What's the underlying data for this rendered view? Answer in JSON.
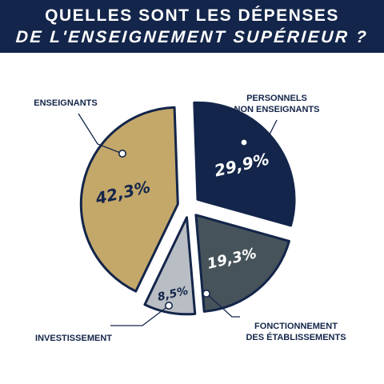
{
  "title_line1": "QUELLES SONT LES DÉPENSES",
  "title_line2": "DE L'ENSEIGNEMENT SUPÉRIEUR ?",
  "chart_data": {
    "type": "pie",
    "title": "QUELLES SONT LES DÉPENSES DE L'ENSEIGNEMENT SUPÉRIEUR ?",
    "slices": [
      {
        "key": "pnens",
        "label_lines": [
          "PERSONNELS",
          "NON ENSEIGNANTS"
        ],
        "value": 29.9,
        "display": "29,9%",
        "color": "#13254a",
        "text_color": "#ffffff"
      },
      {
        "key": "fonct",
        "label_lines": [
          "FONCTIONNEMENT",
          "DES ÉTABLISSEMENTS"
        ],
        "value": 19.3,
        "display": "19,3%",
        "color": "#46535a",
        "text_color": "#ffffff"
      },
      {
        "key": "invest",
        "label_lines": [
          "INVESTISSEMENT"
        ],
        "value": 8.5,
        "display": "8,5%",
        "color": "#b9bec4",
        "text_color": "#13254a"
      },
      {
        "key": "ens",
        "label_lines": [
          "ENSEIGNANTS"
        ],
        "value": 42.3,
        "display": "42,3%",
        "color": "#c4a86a",
        "text_color": "#13254a"
      }
    ],
    "legend": "none",
    "grid": false
  }
}
